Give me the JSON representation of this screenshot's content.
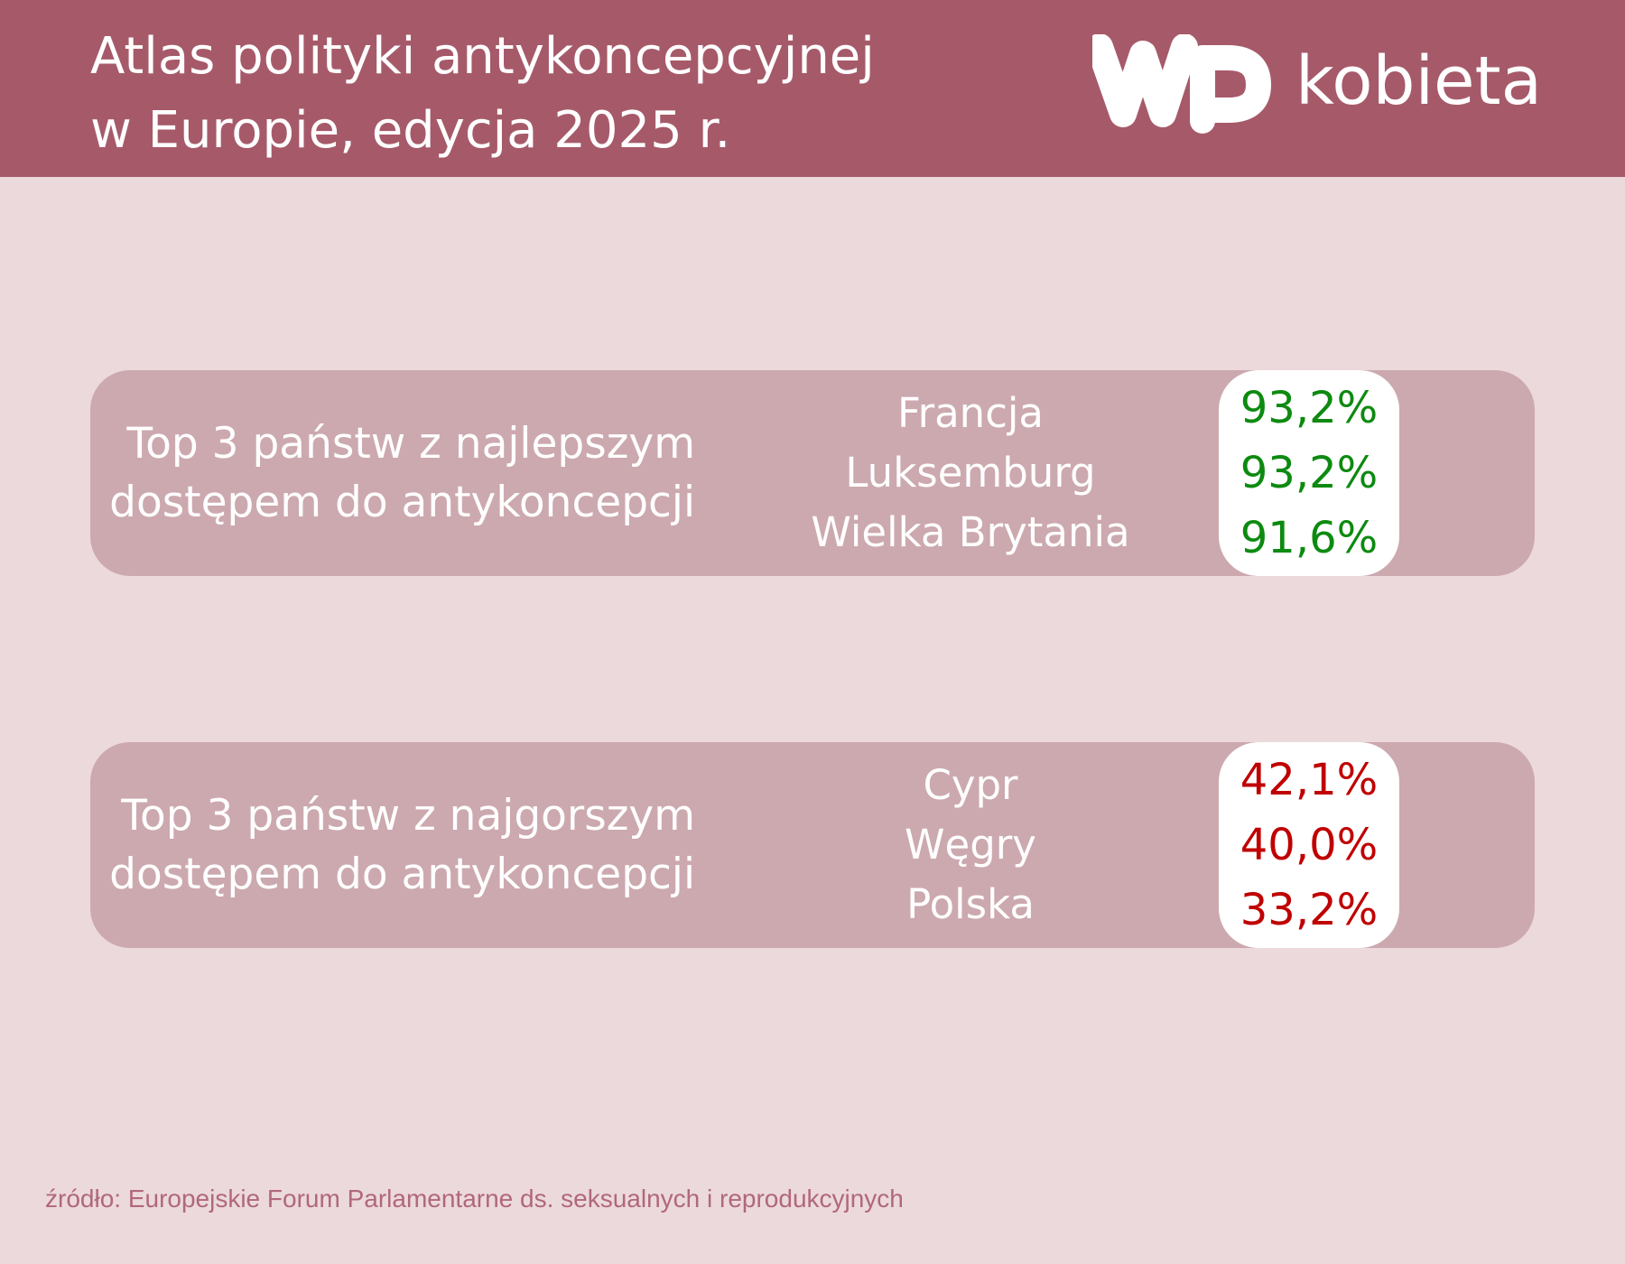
{
  "header": {
    "title_line1": "Atlas polityki antykoncepcyjnej",
    "title_line2": "w Europie, edycja 2025 r.",
    "brand": "kobieta",
    "logo_icon": "wp-logo-icon"
  },
  "best": {
    "label_line1": "Top 3 państw z najlepszym",
    "label_line2": "dostępem do antykoncepcji",
    "countries": [
      "Francja",
      "Luksemburg",
      "Wielka Brytania"
    ],
    "values": [
      "93,2%",
      "93,2%",
      "91,6%"
    ],
    "value_color": "#0d8a10"
  },
  "worst": {
    "label_line1": "Top 3 państw z najgorszym",
    "label_line2": "dostępem do antykoncepcji",
    "countries": [
      "Cypr",
      "Węgry",
      "Polska"
    ],
    "values": [
      "42,1%",
      "40,0%",
      "33,2%"
    ],
    "value_color": "#c00000"
  },
  "source": "źródło: Europejskie Forum Parlamentarne ds. seksualnych i reprodukcyjnych",
  "colors": {
    "header_bg": "#a65a69",
    "page_bg": "#ecd9dc",
    "panel_bg": "#cca9af",
    "source_text": "#b0687a"
  }
}
